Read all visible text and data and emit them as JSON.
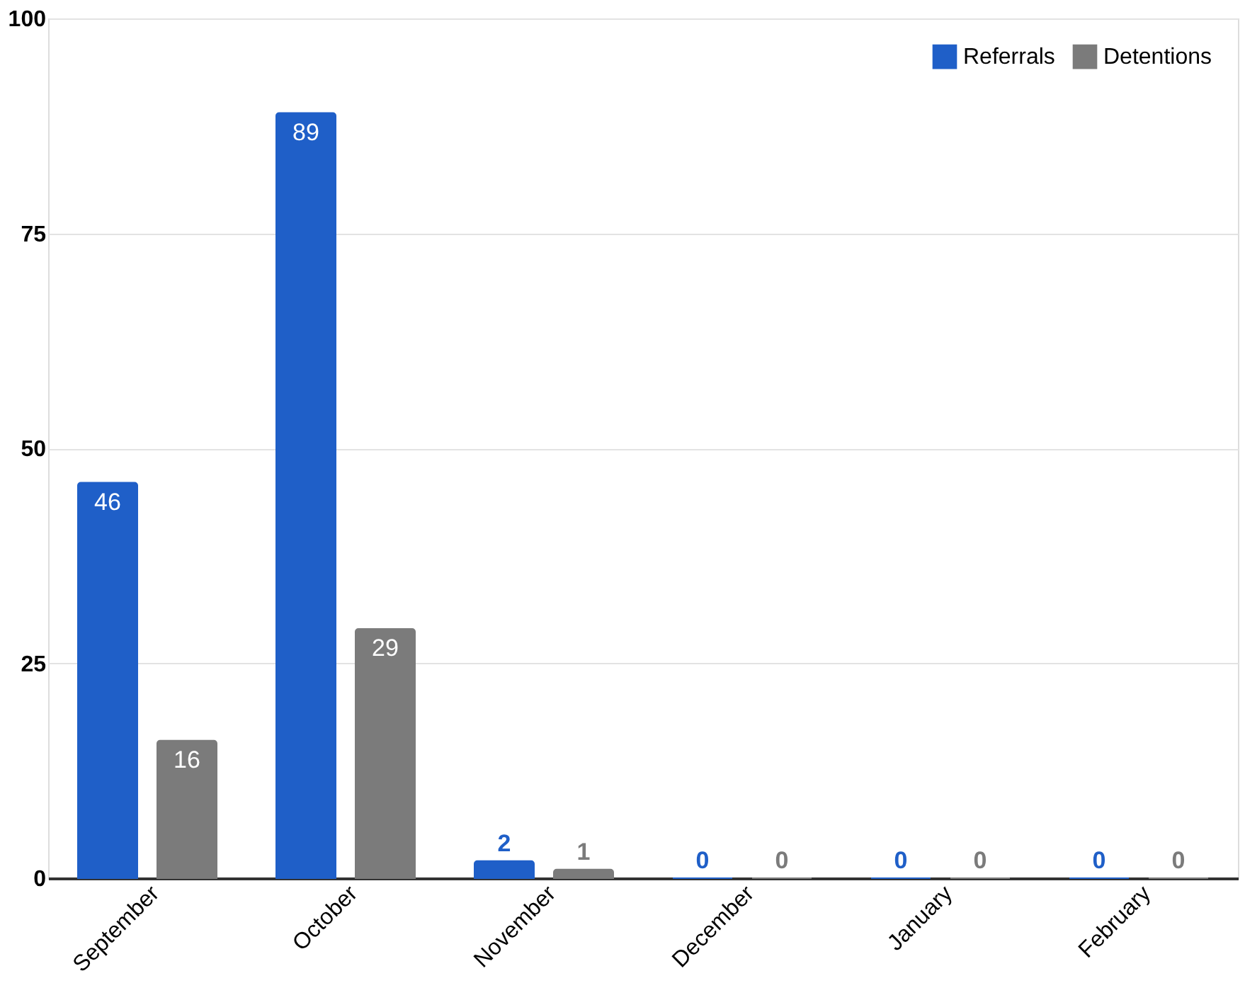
{
  "chart_data": {
    "type": "bar",
    "categories": [
      "September",
      "October",
      "November",
      "December",
      "January",
      "February"
    ],
    "series": [
      {
        "name": "Referrals",
        "color": "#1f5fc8",
        "values": [
          46,
          89,
          2,
          0,
          0,
          0
        ]
      },
      {
        "name": "Detentions",
        "color": "#7b7b7b",
        "values": [
          16,
          29,
          1,
          0,
          0,
          0
        ]
      }
    ],
    "ylim": [
      0,
      100
    ],
    "yticks": [
      0,
      25,
      50,
      75,
      100
    ],
    "grid": "y",
    "legend": "top right",
    "data_labels": true
  }
}
